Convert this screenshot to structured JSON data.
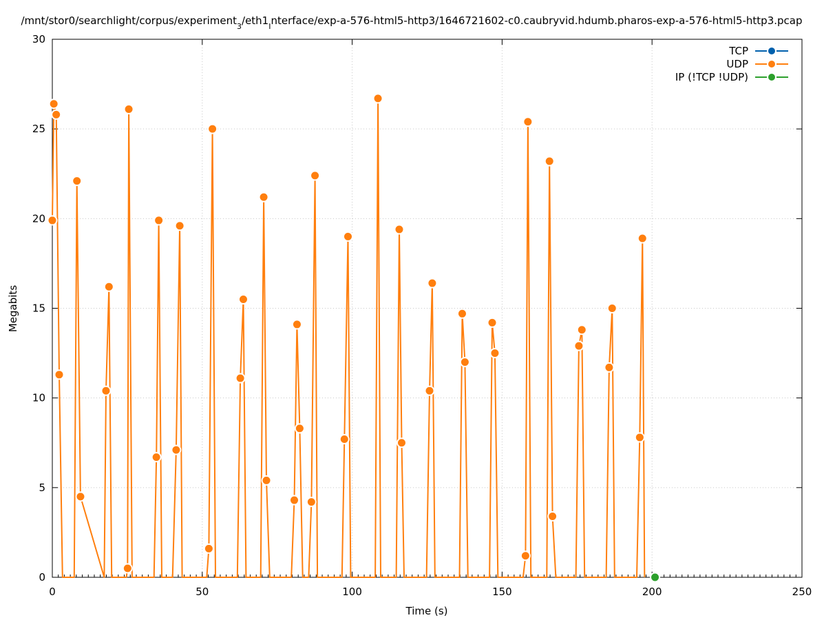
{
  "chart_data": {
    "type": "line",
    "title": "/mnt/stor0/searchlight/corpus/experiment",
    "title_sub": "3",
    "title_mid": "/eth1",
    "title_sub2": "I",
    "title_rest": "nterface/exp-a-576-html5-http3/1646721602-c0.caubryvid.hdumb.pharos-exp-a-576-html5-http3.pcap",
    "xlabel": "Time (s)",
    "ylabel": "Megabits",
    "xlim": [
      0,
      250
    ],
    "ylim": [
      0,
      30
    ],
    "xticks": [
      0,
      50,
      100,
      150,
      200,
      250
    ],
    "yticks": [
      0,
      5,
      10,
      15,
      20,
      25,
      30
    ],
    "grid": true,
    "legend_position": "top-right",
    "colors": {
      "TCP": "#0060ad",
      "UDP": "#ff7f0e",
      "IP": "#2ca02c"
    },
    "series": [
      {
        "name": "TCP",
        "x": [],
        "y": []
      },
      {
        "name": "UDP",
        "x": [
          0,
          0.5,
          1.3,
          2.3,
          3.4,
          7.3,
          8.2,
          9.4,
          17.3,
          17.9,
          18.9,
          19.8,
          24.7,
          25.1,
          25.5,
          26.6,
          33.9,
          34.7,
          35.5,
          36.5,
          40.1,
          41.3,
          42.5,
          43.3,
          51.5,
          52.2,
          53.4,
          54.4,
          61.7,
          62.7,
          63.7,
          64.6,
          69.5,
          70.5,
          71.4,
          72.5,
          79.7,
          80.7,
          81.6,
          82.5,
          83.5,
          85.5,
          86.4,
          87.6,
          88.4,
          96.6,
          97.4,
          98.6,
          99.5,
          107.7,
          108.6,
          109.5,
          114.7,
          115.7,
          116.5,
          117.3,
          124.8,
          125.8,
          126.7,
          127.6,
          135.8,
          136.7,
          137.6,
          138.6,
          145.8,
          146.7,
          147.6,
          148.6,
          157.0,
          157.8,
          158.6,
          159.6,
          164.9,
          165.8,
          166.8,
          167.9,
          174.6,
          175.6,
          176.6,
          177.5,
          184.7,
          185.7,
          186.7,
          187.5,
          194.9,
          195.9,
          196.8,
          197.5
        ],
        "y": [
          19.9,
          26.4,
          25.8,
          11.3,
          0,
          0,
          22.1,
          4.5,
          0,
          10.4,
          16.2,
          0,
          0,
          0.5,
          26.1,
          0,
          0,
          6.7,
          19.9,
          0,
          0,
          7.1,
          19.6,
          0,
          0,
          1.6,
          25.0,
          0,
          0,
          11.1,
          15.5,
          0,
          0,
          21.2,
          5.4,
          0,
          0,
          4.3,
          14.1,
          8.3,
          0,
          0,
          4.2,
          22.4,
          0,
          0,
          7.7,
          19.0,
          0,
          0,
          26.7,
          0,
          0,
          19.4,
          7.5,
          0,
          0,
          10.4,
          16.4,
          0,
          0,
          14.7,
          12.0,
          0,
          0,
          14.2,
          12.5,
          0,
          0,
          1.2,
          25.4,
          0,
          0,
          23.2,
          3.4,
          0,
          0,
          12.9,
          13.8,
          0,
          0,
          11.7,
          15.0,
          0,
          0,
          7.8,
          18.9,
          0
        ],
        "markers": [
          [
            0,
            19.9
          ],
          [
            0.5,
            26.4
          ],
          [
            1.3,
            25.8
          ],
          [
            2.3,
            11.3
          ],
          [
            8.2,
            22.1
          ],
          [
            9.4,
            4.5
          ],
          [
            17.9,
            10.4
          ],
          [
            18.9,
            16.2
          ],
          [
            25.1,
            0.5
          ],
          [
            25.5,
            26.1
          ],
          [
            34.7,
            6.7
          ],
          [
            35.5,
            19.9
          ],
          [
            41.3,
            7.1
          ],
          [
            42.5,
            19.6
          ],
          [
            52.2,
            1.6
          ],
          [
            53.4,
            25.0
          ],
          [
            62.7,
            11.1
          ],
          [
            63.7,
            15.5
          ],
          [
            70.5,
            21.2
          ],
          [
            71.4,
            5.4
          ],
          [
            80.7,
            4.3
          ],
          [
            81.6,
            14.1
          ],
          [
            82.5,
            8.3
          ],
          [
            86.4,
            4.2
          ],
          [
            87.6,
            22.4
          ],
          [
            97.4,
            7.7
          ],
          [
            98.6,
            19.0
          ],
          [
            108.6,
            26.7
          ],
          [
            115.7,
            19.4
          ],
          [
            116.5,
            7.5
          ],
          [
            125.8,
            10.4
          ],
          [
            126.7,
            16.4
          ],
          [
            136.7,
            14.7
          ],
          [
            137.6,
            12.0
          ],
          [
            146.7,
            14.2
          ],
          [
            147.6,
            12.5
          ],
          [
            157.8,
            1.2
          ],
          [
            158.6,
            25.4
          ],
          [
            165.8,
            23.2
          ],
          [
            166.8,
            3.4
          ],
          [
            175.6,
            12.9
          ],
          [
            176.6,
            13.8
          ],
          [
            185.7,
            11.7
          ],
          [
            186.7,
            15.0
          ],
          [
            195.9,
            7.8
          ],
          [
            196.8,
            18.9
          ]
        ]
      },
      {
        "name": "IP (!TCP  !UDP)",
        "x": [
          201
        ],
        "y": [
          0
        ]
      }
    ]
  }
}
